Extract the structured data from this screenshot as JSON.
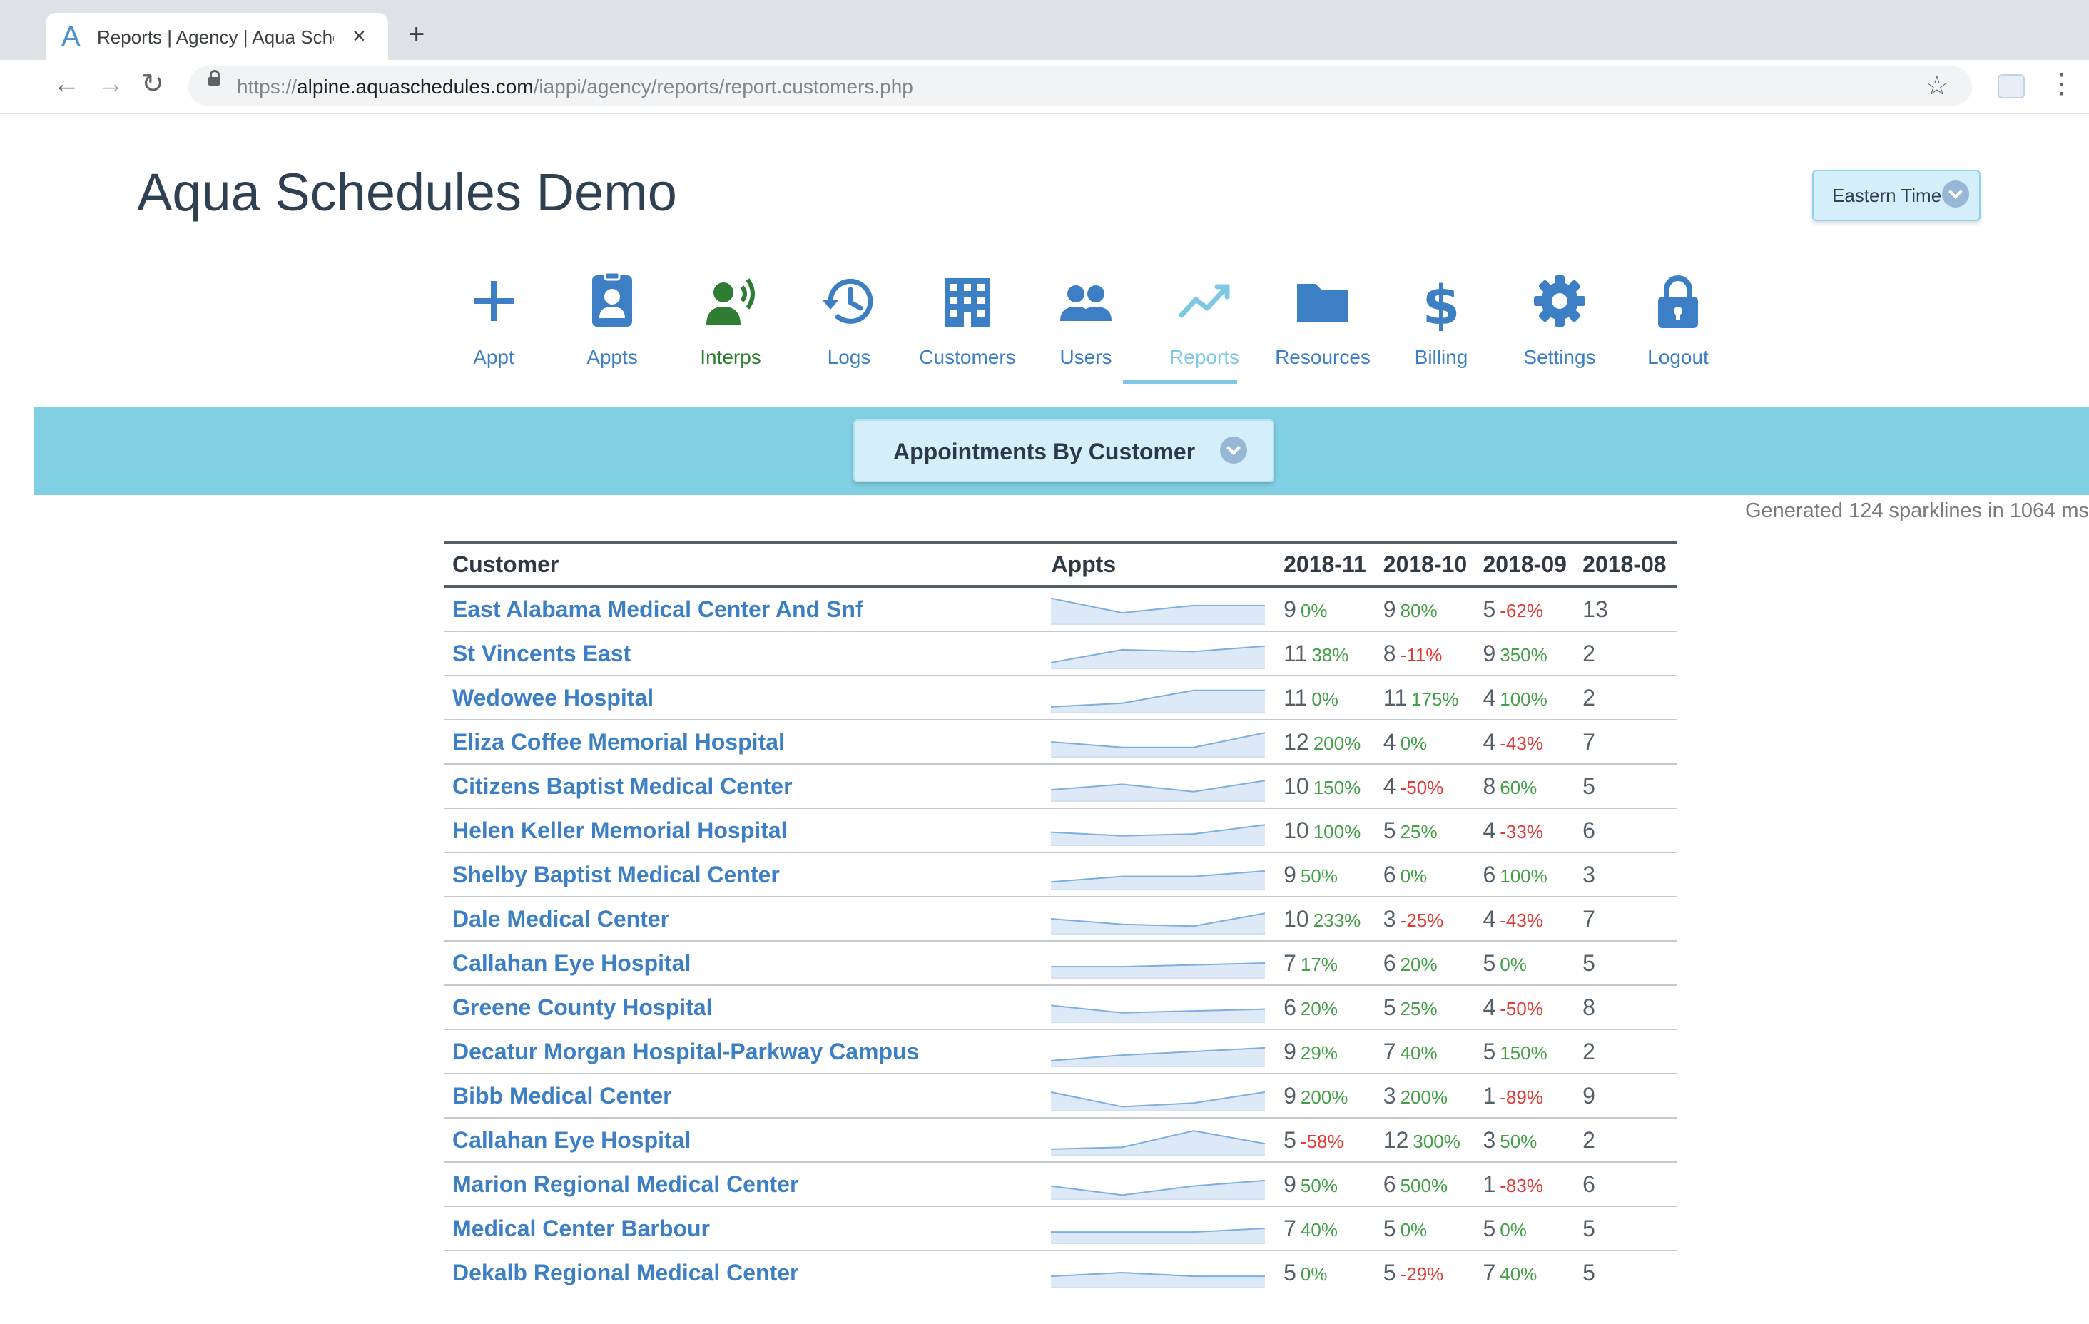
{
  "browser": {
    "tab_title": "Reports | Agency | Aqua Schedules",
    "tab_logo": "A",
    "close_glyph": "×",
    "new_tab_glyph": "+",
    "url_scheme": "https://",
    "url_host": "alpine.aquaschedules.com",
    "url_path": "/iappi/agency/reports/report.customers.php",
    "icons": {
      "back": "back-arrow-icon",
      "forward": "forward-arrow-icon",
      "reload": "reload-icon",
      "lock": "lock-icon",
      "star": "star-icon",
      "menu": "menu-kebab-icon",
      "extension": "extension-icon"
    }
  },
  "header": {
    "site_title": "Aqua Schedules Demo",
    "timezone": "Eastern Time"
  },
  "nav": {
    "active": "Reports",
    "items": [
      {
        "label": "Appt",
        "icon": "plus-icon",
        "color": "#3d7fc4"
      },
      {
        "label": "Appts",
        "icon": "id-badge-icon",
        "color": "#3d7fc4"
      },
      {
        "label": "Interps",
        "icon": "interpreter-icon",
        "color": "#2e7d32"
      },
      {
        "label": "Logs",
        "icon": "history-icon",
        "color": "#3d7fc4"
      },
      {
        "label": "Customers",
        "icon": "building-icon",
        "color": "#3d7fc4"
      },
      {
        "label": "Users",
        "icon": "users-icon",
        "color": "#3d7fc4"
      },
      {
        "label": "Reports",
        "icon": "chart-line-icon",
        "color": "#7ec8e3"
      },
      {
        "label": "Resources",
        "icon": "folder-icon",
        "color": "#3d7fc4"
      },
      {
        "label": "Billing",
        "icon": "dollar-icon",
        "color": "#3d7fc4"
      },
      {
        "label": "Settings",
        "icon": "gear-icon",
        "color": "#3d7fc4"
      },
      {
        "label": "Logout",
        "icon": "lock-icon",
        "color": "#3d7fc4"
      }
    ]
  },
  "report": {
    "selected": "Appointments By Customer",
    "generated_note": "Generated 124 sparklines in 1064 ms"
  },
  "table": {
    "headers": {
      "customer": "Customer",
      "appts": "Appts",
      "m1": "2018-11",
      "m2": "2018-10",
      "m3": "2018-09",
      "m4": "2018-08"
    },
    "colors": {
      "up": "#43a047",
      "down": "#e53935",
      "link": "#3d7fc4",
      "spark_fill": "#dde9f7",
      "spark_line": "#7eaee0"
    },
    "rows": [
      {
        "customer": "East Alabama Medical Center And Snf",
        "m1": "9",
        "p1": "0%",
        "m2": "9",
        "p2": "80%",
        "m3": "5",
        "p3": "-62%",
        "m4": "13",
        "spark": [
          13,
          5,
          9,
          9
        ]
      },
      {
        "customer": "St Vincents East",
        "m1": "11",
        "p1": "38%",
        "m2": "8",
        "p2": "-11%",
        "m3": "9",
        "p3": "350%",
        "m4": "2",
        "spark": [
          2,
          9,
          8,
          11
        ]
      },
      {
        "customer": "Wedowee Hospital",
        "m1": "11",
        "p1": "0%",
        "m2": "11",
        "p2": "175%",
        "m3": "4",
        "p3": "100%",
        "m4": "2",
        "spark": [
          2,
          4,
          11,
          11
        ]
      },
      {
        "customer": "Eliza Coffee Memorial Hospital",
        "m1": "12",
        "p1": "200%",
        "m2": "4",
        "p2": "0%",
        "m3": "4",
        "p3": "-43%",
        "m4": "7",
        "spark": [
          7,
          4,
          4,
          12
        ]
      },
      {
        "customer": "Citizens Baptist Medical Center",
        "m1": "10",
        "p1": "150%",
        "m2": "4",
        "p2": "-50%",
        "m3": "8",
        "p3": "60%",
        "m4": "5",
        "spark": [
          5,
          8,
          4,
          10
        ]
      },
      {
        "customer": "Helen Keller Memorial Hospital",
        "m1": "10",
        "p1": "100%",
        "m2": "5",
        "p2": "25%",
        "m3": "4",
        "p3": "-33%",
        "m4": "6",
        "spark": [
          6,
          4,
          5,
          10
        ]
      },
      {
        "customer": "Shelby Baptist Medical Center",
        "m1": "9",
        "p1": "50%",
        "m2": "6",
        "p2": "0%",
        "m3": "6",
        "p3": "100%",
        "m4": "3",
        "spark": [
          3,
          6,
          6,
          9
        ]
      },
      {
        "customer": "Dale Medical Center",
        "m1": "10",
        "p1": "233%",
        "m2": "3",
        "p2": "-25%",
        "m3": "4",
        "p3": "-43%",
        "m4": "7",
        "spark": [
          7,
          4,
          3,
          10
        ]
      },
      {
        "customer": "Callahan Eye Hospital",
        "m1": "7",
        "p1": "17%",
        "m2": "6",
        "p2": "20%",
        "m3": "5",
        "p3": "0%",
        "m4": "5",
        "spark": [
          5,
          5,
          6,
          7
        ]
      },
      {
        "customer": "Greene County Hospital",
        "m1": "6",
        "p1": "20%",
        "m2": "5",
        "p2": "25%",
        "m3": "4",
        "p3": "-50%",
        "m4": "8",
        "spark": [
          8,
          4,
          5,
          6
        ]
      },
      {
        "customer": "Decatur Morgan Hospital-Parkway Campus",
        "m1": "9",
        "p1": "29%",
        "m2": "7",
        "p2": "40%",
        "m3": "5",
        "p3": "150%",
        "m4": "2",
        "spark": [
          2,
          5,
          7,
          9
        ]
      },
      {
        "customer": "Bibb Medical Center",
        "m1": "9",
        "p1": "200%",
        "m2": "3",
        "p2": "200%",
        "m3": "1",
        "p3": "-89%",
        "m4": "9",
        "spark": [
          9,
          1,
          3,
          9
        ]
      },
      {
        "customer": "Callahan Eye Hospital",
        "m1": "5",
        "p1": "-58%",
        "m2": "12",
        "p2": "300%",
        "m3": "3",
        "p3": "50%",
        "m4": "2",
        "spark": [
          2,
          3,
          12,
          5
        ]
      },
      {
        "customer": "Marion Regional Medical Center",
        "m1": "9",
        "p1": "50%",
        "m2": "6",
        "p2": "500%",
        "m3": "1",
        "p3": "-83%",
        "m4": "6",
        "spark": [
          6,
          1,
          6,
          9
        ]
      },
      {
        "customer": "Medical Center Barbour",
        "m1": "7",
        "p1": "40%",
        "m2": "5",
        "p2": "0%",
        "m3": "5",
        "p3": "0%",
        "m4": "5",
        "spark": [
          5,
          5,
          5,
          7
        ]
      },
      {
        "customer": "Dekalb Regional Medical Center",
        "m1": "5",
        "p1": "0%",
        "m2": "5",
        "p2": "-29%",
        "m3": "7",
        "p3": "40%",
        "m4": "5",
        "spark": [
          5,
          7,
          5,
          5
        ]
      }
    ]
  }
}
